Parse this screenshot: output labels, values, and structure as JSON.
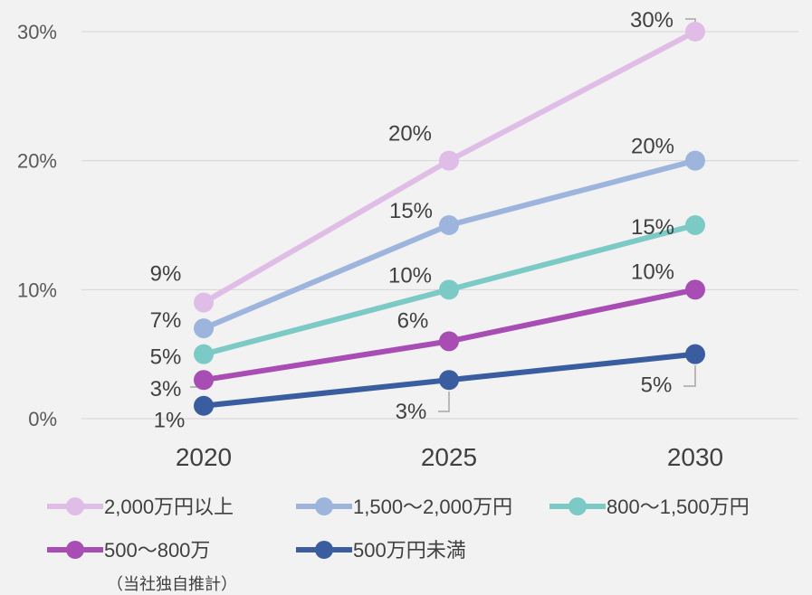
{
  "chart_data": {
    "type": "line",
    "categories": [
      "2020",
      "2025",
      "2030"
    ],
    "ylim": [
      0,
      30
    ],
    "y_ticks": [
      "0%",
      "10%",
      "20%",
      "30%"
    ],
    "grid": true,
    "legend_position": "bottom",
    "series": [
      {
        "name": "2,000万円以上",
        "color": "#e0bde6",
        "values": [
          9,
          20,
          30
        ],
        "labels": [
          "9%",
          "20%",
          "30%"
        ]
      },
      {
        "name": "1,500～2,000万円",
        "color": "#9db4dc",
        "values": [
          7,
          15,
          20
        ],
        "labels": [
          "7%",
          "15%",
          "20%"
        ]
      },
      {
        "name": "800～1,500万円",
        "color": "#7ccac6",
        "values": [
          5,
          10,
          15
        ],
        "labels": [
          "5%",
          "10%",
          "15%"
        ]
      },
      {
        "name": "500～800万",
        "color": "#a74db3",
        "values": [
          3,
          6,
          10
        ],
        "labels": [
          "3%",
          "6%",
          "10%"
        ]
      },
      {
        "name": "500万円未満",
        "color": "#3a5da0",
        "values": [
          1,
          3,
          5
        ],
        "labels": [
          "1%",
          "3%",
          "5%"
        ]
      }
    ]
  },
  "note": "（当社独自推計）"
}
